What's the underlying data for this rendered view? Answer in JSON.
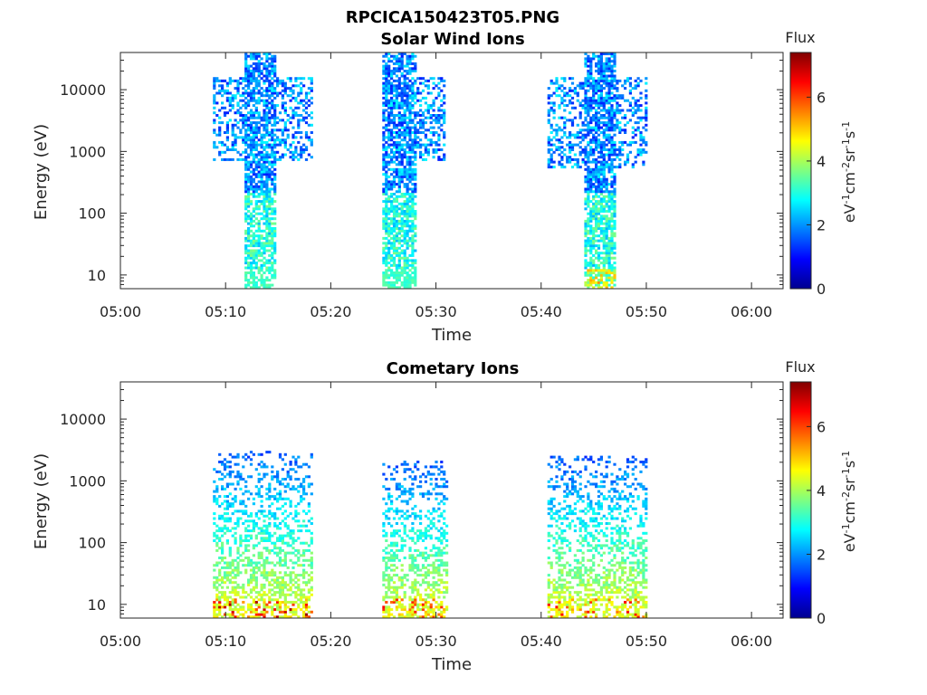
{
  "figure_title": "RPCICA150423T05.PNG",
  "chart_data": [
    {
      "type": "heatmap",
      "title": "Solar Wind Ions",
      "xlabel": "Time",
      "ylabel": "Energy (eV)",
      "y_scale": "log",
      "xlim_minutes": [
        0,
        63
      ],
      "ylim": [
        6,
        40000
      ],
      "xticks": [
        0,
        10,
        20,
        30,
        40,
        50,
        60
      ],
      "xtick_labels": [
        "05:00",
        "05:10",
        "05:20",
        "05:30",
        "05:40",
        "05:50",
        "06:00"
      ],
      "yticks": [
        10,
        100,
        1000,
        10000
      ],
      "ytick_labels": [
        "10",
        "100",
        "1000",
        "10000"
      ],
      "colorbar": {
        "title": "Flux",
        "label": "eV-1cm-2sr-1s-1",
        "range": [
          0,
          7.4
        ],
        "ticks": [
          0,
          2,
          4,
          6
        ],
        "tick_labels": [
          "0",
          "2",
          "4",
          "6"
        ],
        "colormap": "jet"
      },
      "bursts": [
        {
          "start_min": 8.8,
          "end_min": 18.2,
          "energy_min_eV": 700,
          "energy_max_eV": 15000,
          "core_start_min": 11.8,
          "core_end_min": 14.6,
          "peak_flux": 3.5
        },
        {
          "start_min": 24.9,
          "end_min": 30.9,
          "energy_min_eV": 700,
          "energy_max_eV": 15000,
          "core_start_min": 24.9,
          "core_end_min": 28.0,
          "peak_flux": 3.5
        },
        {
          "start_min": 40.6,
          "end_min": 50.0,
          "energy_min_eV": 500,
          "energy_max_eV": 15000,
          "core_start_min": 44.0,
          "core_end_min": 47.0,
          "peak_flux": 5.5
        }
      ]
    },
    {
      "type": "heatmap",
      "title": "Cometary Ions",
      "xlabel": "Time",
      "ylabel": "Energy (eV)",
      "y_scale": "log",
      "xlim_minutes": [
        0,
        63
      ],
      "ylim": [
        6,
        40000
      ],
      "xticks": [
        0,
        10,
        20,
        30,
        40,
        50,
        60
      ],
      "xtick_labels": [
        "05:00",
        "05:10",
        "05:20",
        "05:30",
        "05:40",
        "05:50",
        "06:00"
      ],
      "yticks": [
        10,
        100,
        1000,
        10000
      ],
      "ytick_labels": [
        "10",
        "100",
        "1000",
        "10000"
      ],
      "colorbar": {
        "title": "Flux",
        "label": "eV-1cm-2sr-1s-1",
        "range": [
          0,
          7.4
        ],
        "ticks": [
          0,
          2,
          4,
          6
        ],
        "tick_labels": [
          "0",
          "2",
          "4",
          "6"
        ],
        "colormap": "jet"
      },
      "bursts": [
        {
          "start_min": 8.8,
          "end_min": 18.2,
          "energy_min_eV": 6,
          "energy_max_eV": 3000,
          "peak_flux": 7.2
        },
        {
          "start_min": 24.9,
          "end_min": 31.0,
          "energy_min_eV": 6,
          "energy_max_eV": 2000,
          "peak_flux": 6.5
        },
        {
          "start_min": 40.6,
          "end_min": 50.0,
          "energy_min_eV": 6,
          "energy_max_eV": 2500,
          "peak_flux": 6.5
        }
      ]
    }
  ]
}
